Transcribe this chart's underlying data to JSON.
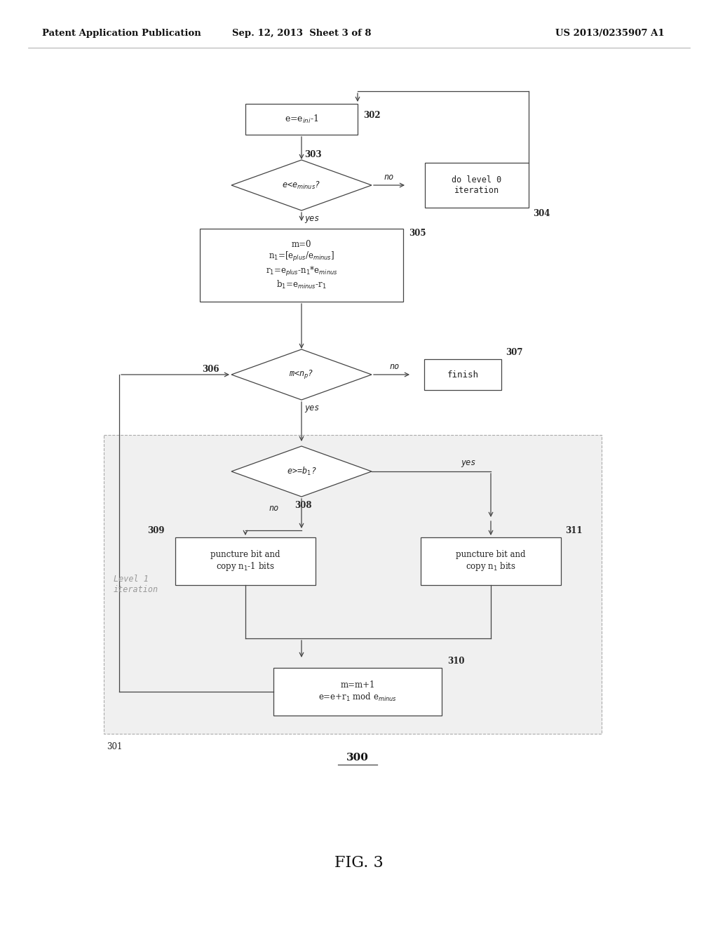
{
  "bg_color": "#ffffff",
  "header_left": "Patent Application Publication",
  "header_center": "Sep. 12, 2013  Sheet 3 of 8",
  "header_right": "US 2013/0235907 A1",
  "fig_label": "FIG. 3",
  "diagram_label": "300",
  "edge_color": "#444444",
  "box_face": "#ffffff",
  "level1_face": "#f0f0f0",
  "level1_edge": "#aaaaaa",
  "text_color": "#222222"
}
